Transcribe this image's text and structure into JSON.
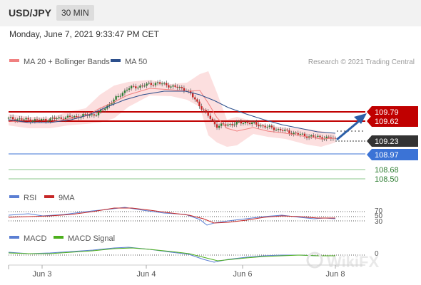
{
  "header": {
    "symbol": "USD/JPY",
    "timeframe": "30 MIN"
  },
  "datetime": "Monday, June 7, 2021 9:33:47 PM CET",
  "legend_main": [
    {
      "label": "MA 20 + Bollinger Bands",
      "color": "#f08080"
    },
    {
      "label": "MA 50",
      "color": "#2c4f8c"
    }
  ],
  "copyright": "Research © 2021 Trading Central",
  "watermark": "WikiFX",
  "colors": {
    "up": "#2e7d32",
    "down": "#c62828",
    "resistance": "#c00000",
    "support": "#3b73d6",
    "target": "#2e7d32",
    "current": "#333333",
    "arrow": "#2b5fa8"
  },
  "chart_data": [
    {
      "type": "line",
      "name": "price",
      "x": [
        "Jun 3 00:00",
        "Jun 3 08:00",
        "Jun 3 16:00",
        "Jun 4 00:00",
        "Jun 4 08:00",
        "Jun 4 16:00",
        "Jun 5 00:00",
        "Jun 5 08:00",
        "Jun 6 00:00",
        "Jun 6 16:00",
        "Jun 7 08:00",
        "Jun 7 21:30"
      ],
      "series": [
        {
          "name": "close",
          "values": [
            109.58,
            109.55,
            109.6,
            109.66,
            110.1,
            110.2,
            110.08,
            109.45,
            109.52,
            109.4,
            109.28,
            109.23
          ]
        },
        {
          "name": "MA 50",
          "values": [
            109.62,
            109.58,
            109.62,
            109.7,
            109.8,
            109.98,
            110.02,
            109.85,
            109.65,
            109.55,
            109.4,
            109.35
          ]
        }
      ],
      "xtick_labels": [
        "Jun 3",
        "Jun 4",
        "Jun 6",
        "Jun 8"
      ],
      "levels": [
        {
          "value": "109.79",
          "kind": "resistance"
        },
        {
          "value": "109.62",
          "kind": "resistance"
        },
        {
          "value": "109.23",
          "kind": "current"
        },
        {
          "value": "108.97",
          "kind": "support"
        },
        {
          "value": "108.68",
          "kind": "target"
        },
        {
          "value": "108.50",
          "kind": "target"
        }
      ],
      "ylim": [
        108.4,
        110.4
      ]
    },
    {
      "type": "line",
      "legend": [
        {
          "label": "RSI",
          "color": "#5b7fd3"
        },
        {
          "label": "9MA",
          "color": "#c62828"
        }
      ],
      "series": [
        {
          "name": "RSI",
          "values": [
            47,
            52,
            55,
            60,
            70,
            68,
            62,
            38,
            48,
            50,
            44,
            46
          ]
        },
        {
          "name": "9MA",
          "values": [
            48,
            50,
            53,
            58,
            66,
            67,
            64,
            44,
            47,
            49,
            45,
            46
          ]
        }
      ],
      "ytick_labels": [
        "70",
        "50",
        "30"
      ],
      "ylim": [
        20,
        80
      ]
    },
    {
      "type": "line",
      "legend": [
        {
          "label": "MACD",
          "color": "#5b7fd3"
        },
        {
          "label": "MACD Signal",
          "color": "#4caf1c"
        }
      ],
      "series": [
        {
          "name": "MACD",
          "values": [
            0.02,
            0.05,
            0.08,
            0.15,
            0.22,
            0.18,
            0.1,
            -0.05,
            0.02,
            0.05,
            0.03,
            0.02
          ]
        },
        {
          "name": "MACD Signal",
          "values": [
            0.03,
            0.05,
            0.07,
            0.13,
            0.2,
            0.18,
            0.12,
            0.0,
            0.01,
            0.04,
            0.03,
            0.02
          ]
        }
      ],
      "ytick_labels": [
        "0"
      ],
      "ylim": [
        -0.15,
        0.35
      ]
    }
  ]
}
